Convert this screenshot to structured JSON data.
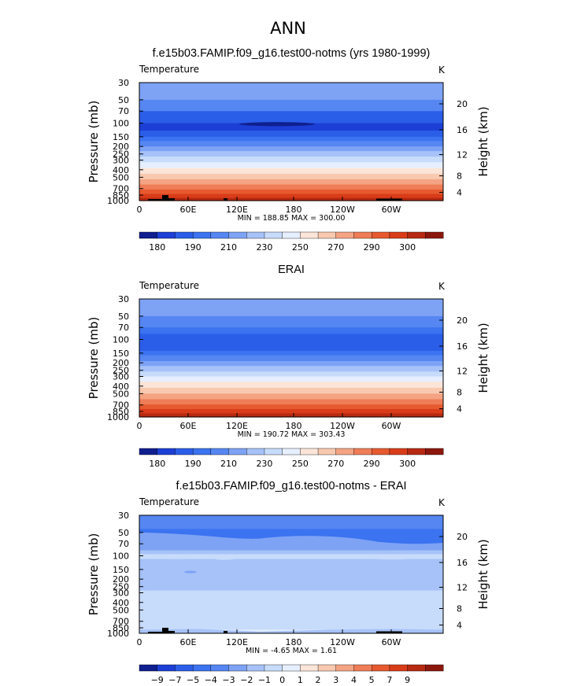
{
  "figure": {
    "main_title": "ANN"
  },
  "chart_data": [
    {
      "type": "heatmap",
      "title": "f.e15b03.FAMIP.f09_g16.test00-notms (yrs 1980-1999)",
      "variable": "Temperature",
      "units": "K",
      "ylabel": "Pressure  (mb)",
      "ylabel_right": "Height  (km)",
      "x_ticks": [
        "0",
        "60E",
        "120E",
        "180",
        "120W",
        "60W"
      ],
      "y_ticks": [
        "30",
        "50",
        "70",
        "100",
        "150",
        "200",
        "250",
        "300",
        "400",
        "500",
        "700",
        "850",
        "1000"
      ],
      "y_ticks_right": [
        "20",
        "16",
        "12",
        "8",
        "4"
      ],
      "min_max_text": "MIN = 188.85   MAX = 300.00",
      "colorbar_labels": [
        "180",
        "190",
        "210",
        "230",
        "250",
        "270",
        "290",
        "300"
      ],
      "colorbar_colors": [
        "#0f1f8f",
        "#1c3fd6",
        "#2b5ee8",
        "#3b73f0",
        "#5586f2",
        "#7ea3f5",
        "#a6c2f8",
        "#c7dbfb",
        "#e6efff",
        "#fbe5d8",
        "#f8c9b0",
        "#f4a383",
        "#ef7d57",
        "#e75a30",
        "#d93c19",
        "#b72a12",
        "#8c170c"
      ],
      "band_levels": [
        {
          "p": 30,
          "level": 5
        },
        {
          "p": 50,
          "level": 4
        },
        {
          "p": 70,
          "level": 2
        },
        {
          "p": 100,
          "level": 1
        },
        {
          "p": 125,
          "level": 2
        },
        {
          "p": 150,
          "level": 3
        },
        {
          "p": 170,
          "level": 4
        },
        {
          "p": 200,
          "level": 5
        },
        {
          "p": 230,
          "level": 6
        },
        {
          "p": 270,
          "level": 7
        },
        {
          "p": 320,
          "level": 8
        },
        {
          "p": 380,
          "level": 9
        },
        {
          "p": 450,
          "level": 10
        },
        {
          "p": 530,
          "level": 11
        },
        {
          "p": 620,
          "level": 12
        },
        {
          "p": 720,
          "level": 13
        },
        {
          "p": 820,
          "level": 14
        },
        {
          "p": 920,
          "level": 15
        }
      ]
    },
    {
      "type": "heatmap",
      "title": "ERAI",
      "variable": "Temperature",
      "units": "K",
      "ylabel": "Pressure  (mb)",
      "ylabel_right": "Height  (km)",
      "x_ticks": [
        "0",
        "60E",
        "120E",
        "180",
        "120W",
        "60W"
      ],
      "y_ticks": [
        "30",
        "50",
        "70",
        "100",
        "150",
        "200",
        "250",
        "300",
        "400",
        "500",
        "700",
        "850",
        "1000"
      ],
      "y_ticks_right": [
        "20",
        "16",
        "12",
        "8",
        "4"
      ],
      "min_max_text": "MIN = 190.72   MAX = 303.43",
      "colorbar_labels": [
        "180",
        "190",
        "210",
        "230",
        "250",
        "270",
        "290",
        "300"
      ],
      "colorbar_colors": [
        "#0f1f8f",
        "#1c3fd6",
        "#2b5ee8",
        "#3b73f0",
        "#5586f2",
        "#7ea3f5",
        "#a6c2f8",
        "#c7dbfb",
        "#e6efff",
        "#fbe5d8",
        "#f8c9b0",
        "#f4a383",
        "#ef7d57",
        "#e75a30",
        "#d93c19",
        "#b72a12",
        "#8c170c"
      ],
      "band_levels": [
        {
          "p": 30,
          "level": 5
        },
        {
          "p": 50,
          "level": 4
        },
        {
          "p": 70,
          "level": 3
        },
        {
          "p": 85,
          "level": 2
        },
        {
          "p": 140,
          "level": 3
        },
        {
          "p": 160,
          "level": 4
        },
        {
          "p": 190,
          "level": 5
        },
        {
          "p": 220,
          "level": 6
        },
        {
          "p": 260,
          "level": 7
        },
        {
          "p": 300,
          "level": 8
        },
        {
          "p": 350,
          "level": 9
        },
        {
          "p": 420,
          "level": 10
        },
        {
          "p": 500,
          "level": 11
        },
        {
          "p": 590,
          "level": 12
        },
        {
          "p": 690,
          "level": 13
        },
        {
          "p": 790,
          "level": 14
        },
        {
          "p": 900,
          "level": 15
        }
      ]
    },
    {
      "type": "heatmap",
      "title": "f.e15b03.FAMIP.f09_g16.test00-notms - ERAI",
      "variable": "Temperature",
      "units": "K",
      "ylabel": "Pressure  (mb)",
      "ylabel_right": "Height  (km)",
      "x_ticks": [
        "0",
        "60E",
        "120E",
        "180",
        "120W",
        "60W"
      ],
      "y_ticks": [
        "30",
        "50",
        "70",
        "100",
        "150",
        "200",
        "250",
        "300",
        "400",
        "500",
        "700",
        "850",
        "1000"
      ],
      "y_ticks_right": [
        "20",
        "16",
        "12",
        "8",
        "4"
      ],
      "min_max_text": "MIN =   -4.65   MAX =    1.61",
      "colorbar_labels": [
        "-9",
        "-7",
        "-5",
        "-4",
        "-3",
        "-2",
        "-1",
        "0",
        "1",
        "2",
        "3",
        "4",
        "5",
        "7",
        "9"
      ],
      "colorbar_colors": [
        "#0f1f8f",
        "#1c3fd6",
        "#2b5ee8",
        "#3b73f0",
        "#5586f2",
        "#7ea3f5",
        "#a6c2f8",
        "#c7dbfb",
        "#e6efff",
        "#fbe5d8",
        "#f8c9b0",
        "#f4a383",
        "#ef7d57",
        "#e75a30",
        "#d93c19",
        "#b72a12",
        "#8c170c"
      ],
      "band_levels": [
        {
          "p": 30,
          "level": 4
        },
        {
          "p": 45,
          "level": 3
        },
        {
          "p": 80,
          "level": 6
        },
        {
          "p": 95,
          "level": 7
        },
        {
          "p": 110,
          "level": 6
        },
        {
          "p": 280,
          "level": 7
        },
        {
          "p": 900,
          "level": 8
        }
      ]
    }
  ]
}
